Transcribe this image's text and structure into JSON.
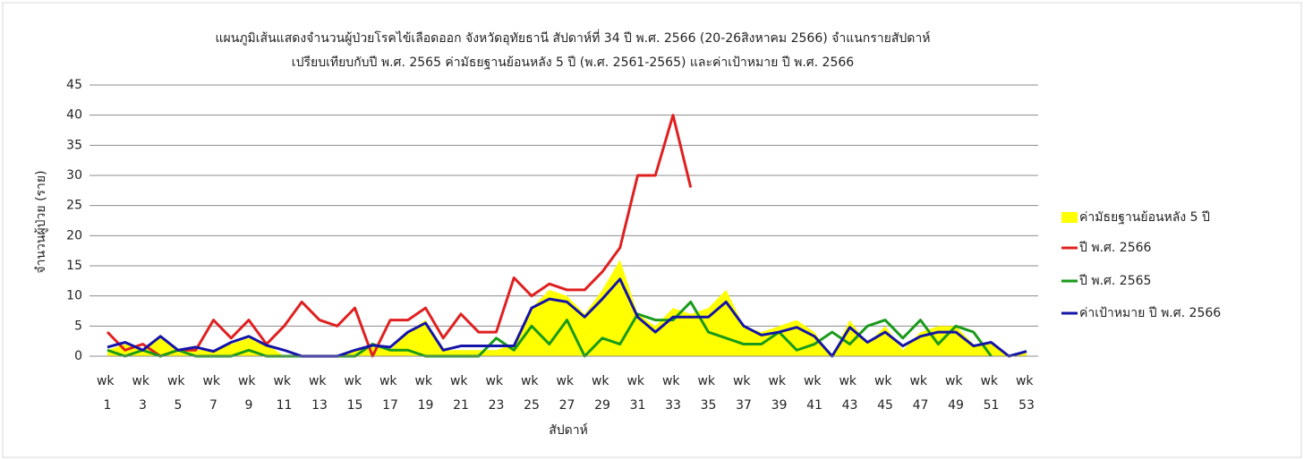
{
  "chart_data": {
    "type": "line",
    "title": "แผนภูมิเส้นแสดงจำนวนผู้ป่วยโรคไข้เลือดออก จังหวัดอุทัยธานี สัปดาห์ที่ 34 ปี พ.ศ. 2566 (20-26สิงหาคม 2566) จำแนกรายสัปดาห์",
    "subtitle": "เปรียบเทียบกับปี  พ.ศ. 2565 ค่ามัธยฐานย้อนหลัง 5 ปี (พ.ศ. 2561-2565) และค่าเป้าหมาย ปี พ.ศ. 2566",
    "y_label": "จำนวนผู้ป่วย (ราย)",
    "x_label": "สัปดาห์",
    "categories": [
      "wk 1",
      null,
      "wk 3",
      null,
      "wk 5",
      null,
      "wk 7",
      null,
      "wk 9",
      null,
      "wk 11",
      null,
      "wk 13",
      null,
      "wk 15",
      null,
      "wk 17",
      null,
      "wk 19",
      null,
      "wk 21",
      null,
      "wk 23",
      null,
      "wk 25",
      null,
      "wk 27",
      null,
      "wk 29",
      null,
      "wk 31",
      null,
      "wk 33",
      null,
      "wk 35",
      null,
      "wk 37",
      null,
      "wk 39",
      null,
      "wk 41",
      null,
      "wk 43",
      null,
      "wk 45",
      null,
      "wk 47",
      null,
      "wk 49",
      null,
      "wk 51",
      null,
      "wk 53"
    ],
    "ylim": [
      0,
      45
    ],
    "yticks": [
      0,
      5,
      10,
      15,
      20,
      25,
      30,
      35,
      40,
      45
    ],
    "grid": true,
    "legend": "right",
    "series": [
      {
        "name": "ค่ามัธยฐานย้อนหลัง 5 ปี",
        "color": "#ffff00",
        "kind": "area",
        "values": [
          1,
          2,
          1,
          3,
          1,
          1,
          1,
          2,
          3,
          2,
          0,
          0,
          0,
          0,
          1,
          2,
          1,
          4,
          6,
          1,
          1,
          1,
          1,
          2,
          8,
          11,
          10,
          7,
          11,
          16,
          7,
          5,
          8,
          7,
          8,
          11,
          5,
          4,
          5,
          6,
          4,
          0,
          6,
          2,
          5,
          1,
          4,
          5,
          5,
          2,
          2,
          0,
          1
        ]
      },
      {
        "name": "ปี พ.ศ. 2566",
        "color": "#e02020",
        "values": [
          4,
          1,
          2,
          0,
          1,
          1,
          6,
          3,
          6,
          2,
          5,
          9,
          6,
          5,
          8,
          0,
          6,
          6,
          8,
          3,
          7,
          4,
          4,
          13,
          10,
          12,
          11,
          11,
          14,
          18,
          30,
          30,
          40,
          28,
          null,
          null,
          null,
          null,
          null,
          null,
          null,
          null,
          null,
          null,
          null,
          null,
          null,
          null,
          null,
          null,
          null,
          null,
          null
        ]
      },
      {
        "name": "ปี พ.ศ. 2565",
        "color": "#1a9a1a",
        "values": [
          1,
          0,
          1,
          0,
          1,
          0,
          0,
          0,
          1,
          0,
          0,
          0,
          0,
          0,
          0,
          2,
          1,
          1,
          0,
          0,
          0,
          0,
          3,
          1,
          5,
          2,
          6,
          0,
          3,
          2,
          7,
          6,
          6,
          9,
          4,
          3,
          2,
          2,
          4,
          1,
          2,
          4,
          2,
          5,
          6,
          3,
          6,
          2,
          5,
          4,
          0,
          null,
          null
        ]
      },
      {
        "name": "ค่าเป้าหมาย ปี พ.ศ. 2566",
        "color": "#1414a8",
        "values": [
          1.5,
          2.3,
          1,
          3.3,
          1,
          1.5,
          0.8,
          2.3,
          3.3,
          1.8,
          1,
          0,
          0,
          0,
          1,
          1.8,
          1.5,
          4,
          5.5,
          1,
          1.7,
          1.7,
          1.7,
          1.7,
          8,
          9.5,
          9,
          6.5,
          9.5,
          12.8,
          6.5,
          4,
          6.5,
          6.5,
          6.5,
          9,
          5,
          3.5,
          4,
          4.8,
          3.3,
          0,
          4.8,
          2.3,
          4,
          1.7,
          3.3,
          4,
          4,
          1.7,
          2.3,
          0,
          0.8
        ]
      }
    ]
  }
}
